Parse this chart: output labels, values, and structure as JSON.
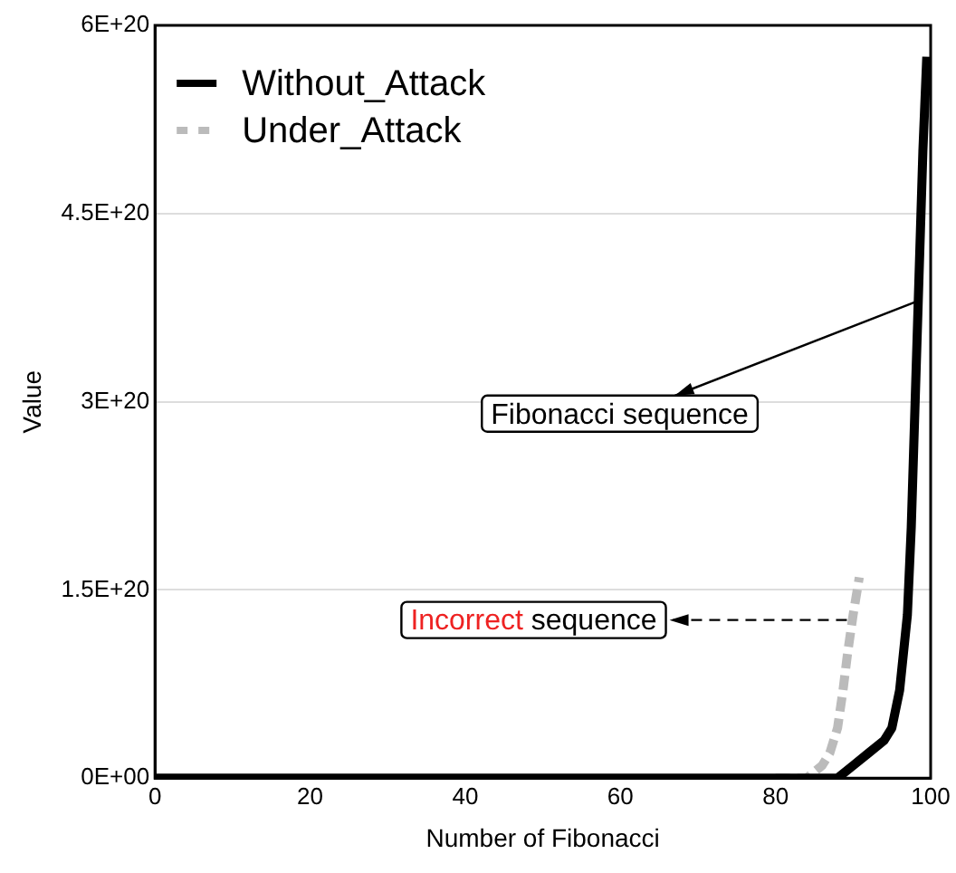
{
  "chart_data": {
    "type": "line",
    "xlabel": "Number of Fibonacci",
    "ylabel": "Value",
    "xlim": [
      0,
      100
    ],
    "xticks": [
      0,
      20,
      40,
      60,
      80,
      100
    ],
    "ylim": [
      0,
      6e+20
    ],
    "yticks": [
      {
        "value": 0,
        "label": "0E+00"
      },
      {
        "value": 1.5e+20,
        "label": "1.5E+20"
      },
      {
        "value": 3e+20,
        "label": "3E+20"
      },
      {
        "value": 4.5e+20,
        "label": "4.5E+20"
      },
      {
        "value": 6e+20,
        "label": "6E+20"
      }
    ],
    "grid": "y",
    "legend": "top left",
    "marker": "none",
    "series": [
      {
        "name": "Without_Attack",
        "color": "#000000",
        "line_style": "solid",
        "x": [
          0,
          80,
          85,
          88,
          90,
          92,
          94,
          95,
          96,
          97,
          97.5,
          98,
          98.5,
          99,
          99.5
        ],
        "values": [
          0,
          0,
          0,
          0,
          1e+19,
          2e+19,
          3e+19,
          4e+19,
          7e+19,
          1.3e+20,
          2e+20,
          3e+20,
          4e+20,
          5e+20,
          5.75e+20
        ]
      },
      {
        "name": "Under_Attack",
        "color": "#bbbbbb",
        "line_style": "dashed",
        "x": [
          80,
          82,
          84,
          86,
          87,
          88,
          88.7,
          89.3,
          90,
          90.8
        ],
        "values": [
          0,
          0,
          0,
          1e+19,
          2e+19,
          4e+19,
          7e+19,
          1e+20,
          1.3e+20,
          1.6e+20
        ]
      }
    ],
    "annotations": [
      {
        "text": "Fibonacci sequence",
        "x": 98.2,
        "y": 3.8e+20
      },
      {
        "text": "Incorrect sequence",
        "x": 89.2,
        "y": 1.26e+20
      }
    ]
  }
}
